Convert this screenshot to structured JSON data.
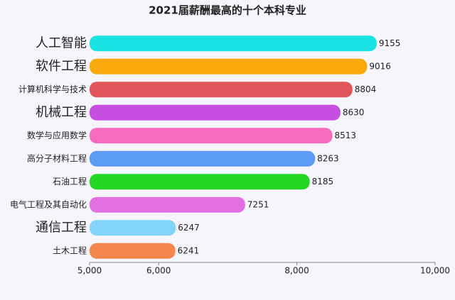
{
  "chart_data": {
    "type": "bar",
    "orientation": "horizontal",
    "title": "2021届薪酬最高的十个本科专业",
    "categories": [
      "人工智能",
      "软件工程",
      "计算机科学与技术",
      "机械工程",
      "数学与应用数学",
      "高分子材料工程",
      "石油工程",
      "电气工程及其自动化",
      "通信工程",
      "土木工程"
    ],
    "values": [
      9155,
      9016,
      8804,
      8630,
      8513,
      8263,
      8185,
      7251,
      6247,
      6241
    ],
    "colors": [
      "#1ce3e3",
      "#f9a90c",
      "#e0555a",
      "#c64ee0",
      "#f56bbd",
      "#5b9af5",
      "#22d822",
      "#e070e0",
      "#82d4f8",
      "#f5864e"
    ],
    "xlim": [
      5000,
      10000
    ],
    "xticks": [
      {
        "value": 5000,
        "label": "5,000"
      },
      {
        "value": 6000,
        "label": "6,000"
      },
      {
        "value": 8000,
        "label": "8,000"
      },
      {
        "value": 10000,
        "label": "10,000"
      }
    ]
  }
}
